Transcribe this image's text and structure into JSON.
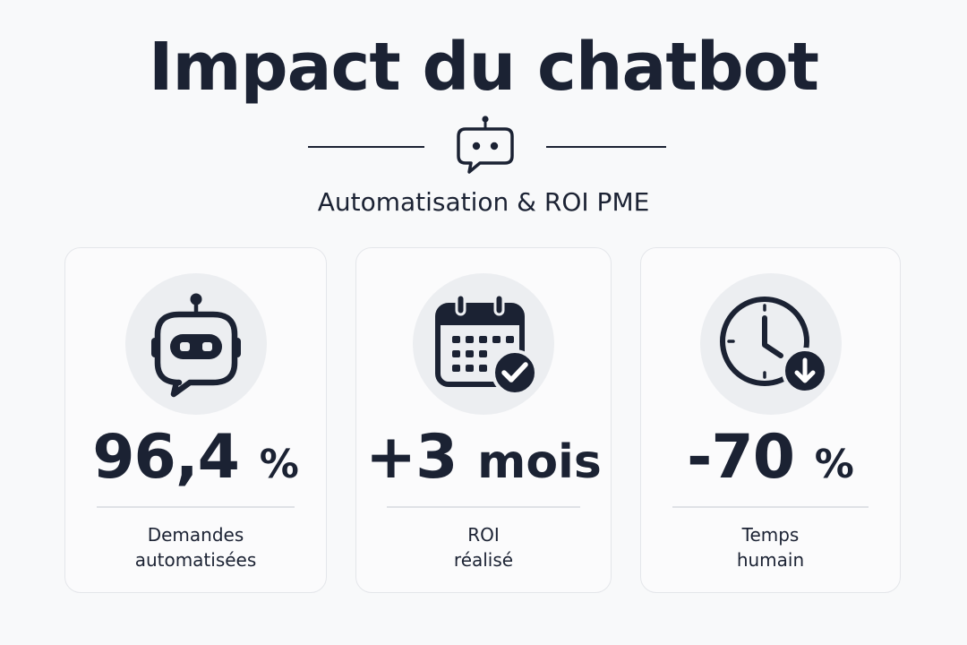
{
  "header": {
    "title": "Impact du chatbot",
    "subtitle": "Automatisation & ROI PME"
  },
  "colors": {
    "ink": "#1b2233",
    "background": "#f8f9fa",
    "icon_circle": "#eceef1",
    "card_border": "#e4e6ea"
  },
  "cards": [
    {
      "icon": "robot-chat-icon",
      "value_number": "96,4",
      "value_unit": "%",
      "label_line1": "Demandes",
      "label_line2": "automatisées"
    },
    {
      "icon": "calendar-check-icon",
      "value_number": "+3",
      "value_unit": "mois",
      "label_line1": "ROI",
      "label_line2": "réalisé"
    },
    {
      "icon": "clock-down-icon",
      "value_number": "-70",
      "value_unit": "%",
      "label_line1": "Temps",
      "label_line2": "humain"
    }
  ]
}
